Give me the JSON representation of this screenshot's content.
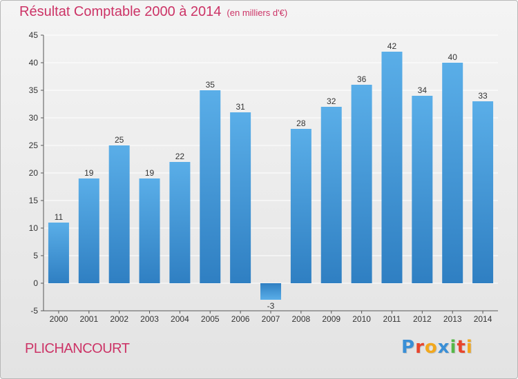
{
  "title": "Résultat Comptable 2000 à 2014",
  "subtitle": "(en milliers d'€)",
  "commune": "PLICHANCOURT",
  "brand": {
    "letters": [
      "P",
      "r",
      "o",
      "x",
      "i",
      "t",
      "i"
    ],
    "colors": [
      "#3a8fd6",
      "#e8452c",
      "#f2a81d",
      "#3a8fd6",
      "#56b848",
      "#e8452c",
      "#f2a81d"
    ]
  },
  "colors": {
    "title": "#cc3366",
    "bar": "#3d8fd0",
    "bar_light": "#5aaee8",
    "grid": "#ffffff",
    "axis_text": "#333333"
  },
  "chart_data": {
    "type": "bar",
    "categories": [
      "2000",
      "2001",
      "2002",
      "2003",
      "2004",
      "2005",
      "2006",
      "2007",
      "2008",
      "2009",
      "2010",
      "2011",
      "2012",
      "2013",
      "2014"
    ],
    "values": [
      11,
      19,
      25,
      19,
      22,
      35,
      31,
      -3,
      28,
      32,
      36,
      42,
      34,
      40,
      33
    ],
    "ylim": [
      -5,
      45
    ],
    "yticks": [
      -5,
      0,
      5,
      10,
      15,
      20,
      25,
      30,
      35,
      40,
      45
    ],
    "grid": "horizontal, white",
    "legend": "none"
  }
}
